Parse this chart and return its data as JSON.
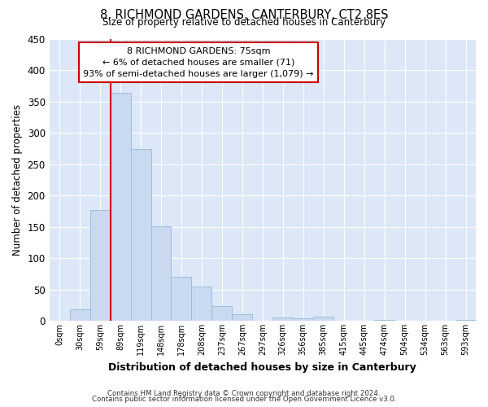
{
  "title": "8, RICHMOND GARDENS, CANTERBURY, CT2 8ES",
  "subtitle": "Size of property relative to detached houses in Canterbury",
  "xlabel": "Distribution of detached houses by size in Canterbury",
  "ylabel": "Number of detached properties",
  "bar_labels": [
    "0sqm",
    "30sqm",
    "59sqm",
    "89sqm",
    "119sqm",
    "148sqm",
    "178sqm",
    "208sqm",
    "237sqm",
    "267sqm",
    "297sqm",
    "326sqm",
    "356sqm",
    "385sqm",
    "415sqm",
    "445sqm",
    "474sqm",
    "504sqm",
    "534sqm",
    "563sqm",
    "593sqm"
  ],
  "bar_values": [
    0,
    18,
    176,
    363,
    274,
    151,
    70,
    55,
    23,
    10,
    0,
    5,
    4,
    7,
    0,
    0,
    1,
    0,
    0,
    0,
    1
  ],
  "bar_color": "#c9daf0",
  "bar_edge_color": "#a0bcd8",
  "vline_color": "#cc0000",
  "ylim": [
    0,
    450
  ],
  "yticks": [
    0,
    50,
    100,
    150,
    200,
    250,
    300,
    350,
    400,
    450
  ],
  "annotation_text": "8 RICHMOND GARDENS: 75sqm\n← 6% of detached houses are smaller (71)\n93% of semi-detached houses are larger (1,079) →",
  "annotation_box_facecolor": "#ffffff",
  "annotation_box_edgecolor": "#cc0000",
  "footer_line1": "Contains HM Land Registry data © Crown copyright and database right 2024.",
  "footer_line2": "Contains public sector information licensed under the Open Government Licence v3.0.",
  "background_color": "#ffffff",
  "axes_facecolor": "#dce8f8",
  "grid_color": "#ffffff"
}
